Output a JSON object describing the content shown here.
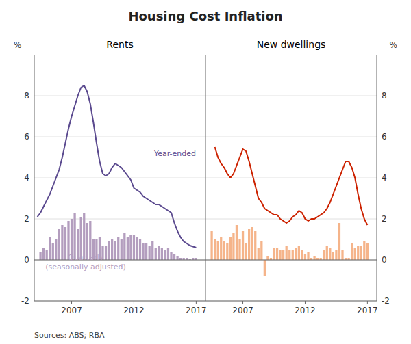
{
  "title": "Housing Cost Inflation",
  "source": "Sources: ABS; RBA",
  "chart_data": [
    {
      "type": "bar",
      "title": "Rents",
      "ylabel": "%",
      "xlim": [
        2004.0,
        2017.75
      ],
      "xticks": [
        2007,
        2012,
        2017
      ],
      "ylim": [
        -2,
        10
      ],
      "yticks": [
        -2,
        0,
        2,
        4,
        6,
        8
      ],
      "grid": true,
      "annotations": [
        "Year-ended",
        "Quarterly",
        "(seasonally adjusted)"
      ],
      "series": [
        {
          "type": "bar",
          "color": "#b39dbe",
          "x": [
            2004.5,
            2004.75,
            2005.0,
            2005.25,
            2005.5,
            2005.75,
            2006.0,
            2006.25,
            2006.5,
            2006.75,
            2007.0,
            2007.25,
            2007.5,
            2007.75,
            2008.0,
            2008.25,
            2008.5,
            2008.75,
            2009.0,
            2009.25,
            2009.5,
            2009.75,
            2010.0,
            2010.25,
            2010.5,
            2010.75,
            2011.0,
            2011.25,
            2011.5,
            2011.75,
            2012.0,
            2012.25,
            2012.5,
            2012.75,
            2013.0,
            2013.25,
            2013.5,
            2013.75,
            2014.0,
            2014.25,
            2014.5,
            2014.75,
            2015.0,
            2015.25,
            2015.5,
            2015.75,
            2016.0,
            2016.25,
            2016.5,
            2016.75,
            2017.0
          ],
          "values": [
            0.4,
            0.6,
            0.5,
            1.1,
            0.8,
            1.0,
            1.5,
            1.7,
            1.6,
            1.9,
            2.0,
            2.3,
            1.5,
            2.1,
            2.3,
            1.8,
            1.9,
            1.0,
            1.0,
            1.1,
            0.7,
            0.7,
            0.9,
            1.0,
            0.9,
            1.1,
            1.0,
            1.3,
            1.1,
            1.2,
            1.2,
            1.1,
            1.0,
            0.8,
            0.8,
            0.7,
            0.9,
            0.6,
            0.7,
            0.6,
            0.5,
            0.6,
            0.4,
            0.3,
            0.2,
            0.1,
            0.1,
            0.1,
            0.05,
            0.1,
            0.1
          ]
        },
        {
          "type": "line",
          "color": "#5b4a8f",
          "x": [
            2004.25,
            2004.5,
            2004.75,
            2005.0,
            2005.25,
            2005.5,
            2005.75,
            2006.0,
            2006.25,
            2006.5,
            2006.75,
            2007.0,
            2007.25,
            2007.5,
            2007.75,
            2008.0,
            2008.25,
            2008.5,
            2008.75,
            2009.0,
            2009.25,
            2009.5,
            2009.75,
            2010.0,
            2010.25,
            2010.5,
            2010.75,
            2011.0,
            2011.25,
            2011.5,
            2011.75,
            2012.0,
            2012.25,
            2012.5,
            2012.75,
            2013.0,
            2013.25,
            2013.5,
            2013.75,
            2014.0,
            2014.25,
            2014.5,
            2014.75,
            2015.0,
            2015.25,
            2015.5,
            2015.75,
            2016.0,
            2016.25,
            2016.5,
            2016.75,
            2017.0
          ],
          "values": [
            2.1,
            2.3,
            2.6,
            2.9,
            3.2,
            3.6,
            4.0,
            4.4,
            5.0,
            5.7,
            6.4,
            7.0,
            7.5,
            8.0,
            8.4,
            8.5,
            8.2,
            7.6,
            6.7,
            5.7,
            4.8,
            4.2,
            4.1,
            4.2,
            4.5,
            4.7,
            4.6,
            4.5,
            4.3,
            4.1,
            3.9,
            3.5,
            3.4,
            3.3,
            3.1,
            3.0,
            2.9,
            2.8,
            2.7,
            2.7,
            2.6,
            2.5,
            2.4,
            2.3,
            1.8,
            1.4,
            1.1,
            0.9,
            0.8,
            0.7,
            0.65,
            0.6
          ]
        }
      ]
    },
    {
      "type": "bar",
      "title": "New dwellings",
      "ylabel": "%",
      "xlim": [
        2004.0,
        2017.75
      ],
      "xticks": [
        2007,
        2012,
        2017
      ],
      "ylim": [
        -2,
        10
      ],
      "yticks": [
        -2,
        0,
        2,
        4,
        6,
        8
      ],
      "grid": true,
      "series": [
        {
          "type": "bar",
          "color": "#f5b48a",
          "x": [
            2004.5,
            2004.75,
            2005.0,
            2005.25,
            2005.5,
            2005.75,
            2006.0,
            2006.25,
            2006.5,
            2006.75,
            2007.0,
            2007.25,
            2007.5,
            2007.75,
            2008.0,
            2008.25,
            2008.5,
            2008.75,
            2009.0,
            2009.25,
            2009.5,
            2009.75,
            2010.0,
            2010.25,
            2010.5,
            2010.75,
            2011.0,
            2011.25,
            2011.5,
            2011.75,
            2012.0,
            2012.25,
            2012.5,
            2012.75,
            2013.0,
            2013.25,
            2013.5,
            2013.75,
            2014.0,
            2014.25,
            2014.5,
            2014.75,
            2015.0,
            2015.25,
            2015.5,
            2015.75,
            2016.0,
            2016.25,
            2016.5,
            2016.75,
            2017.0
          ],
          "values": [
            1.4,
            1.0,
            0.9,
            1.1,
            0.9,
            0.8,
            1.1,
            1.3,
            1.7,
            1.0,
            1.4,
            0.8,
            1.5,
            1.6,
            1.4,
            0.6,
            0.9,
            -0.8,
            0.2,
            0.1,
            0.6,
            0.6,
            0.5,
            0.5,
            0.7,
            0.5,
            0.5,
            0.6,
            0.7,
            0.5,
            0.3,
            0.4,
            0.1,
            0.2,
            0.1,
            0.1,
            0.5,
            0.7,
            0.6,
            0.4,
            0.5,
            1.8,
            0.5,
            0.1,
            0.1,
            0.8,
            0.6,
            0.7,
            0.7,
            0.9,
            0.8
          ]
        },
        {
          "type": "line",
          "color": "#cc2200",
          "x": [
            2004.75,
            2005.0,
            2005.25,
            2005.5,
            2005.75,
            2006.0,
            2006.25,
            2006.5,
            2006.75,
            2007.0,
            2007.25,
            2007.5,
            2007.75,
            2008.0,
            2008.25,
            2008.5,
            2008.75,
            2009.0,
            2009.25,
            2009.5,
            2009.75,
            2010.0,
            2010.25,
            2010.5,
            2010.75,
            2011.0,
            2011.25,
            2011.5,
            2011.75,
            2012.0,
            2012.25,
            2012.5,
            2012.75,
            2013.0,
            2013.25,
            2013.5,
            2013.75,
            2014.0,
            2014.25,
            2014.5,
            2014.75,
            2015.0,
            2015.25,
            2015.5,
            2015.75,
            2016.0,
            2016.25,
            2016.5,
            2016.75,
            2017.0
          ],
          "values": [
            5.5,
            5.0,
            4.7,
            4.5,
            4.2,
            4.0,
            4.2,
            4.6,
            5.0,
            5.4,
            5.3,
            4.8,
            4.2,
            3.6,
            3.0,
            2.8,
            2.5,
            2.4,
            2.3,
            2.2,
            2.2,
            2.0,
            1.9,
            1.8,
            1.9,
            2.1,
            2.2,
            2.4,
            2.3,
            2.0,
            1.9,
            2.0,
            2.0,
            2.1,
            2.2,
            2.3,
            2.5,
            2.8,
            3.2,
            3.6,
            4.0,
            4.4,
            4.8,
            4.8,
            4.5,
            4.0,
            3.2,
            2.5,
            2.0,
            1.7
          ]
        }
      ]
    }
  ]
}
